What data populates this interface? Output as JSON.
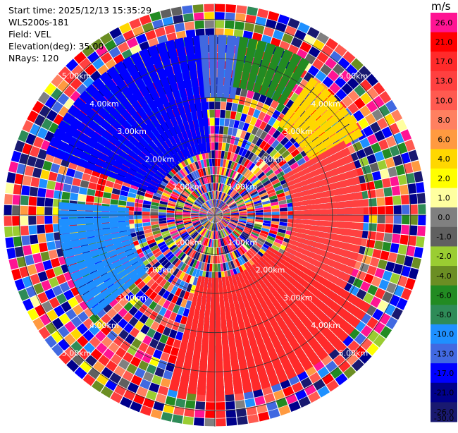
{
  "header": {
    "start_time": "Start time: 2025/12/13 15:35:29",
    "instrument": "WLS200s-181",
    "field": "Field: VEL",
    "elevation": "Elevation(deg): 35.00",
    "nrays": "NRays: 120"
  },
  "colorbar": {
    "unit": "m/s",
    "ticks": [
      "26.0",
      "21.0",
      "17.0",
      "13.0",
      "10.0",
      "8.0",
      "6.0",
      "4.0",
      "2.0",
      "1.0",
      "0.0",
      "-1.0",
      "-2.0",
      "-4.0",
      "-6.0",
      "-8.0",
      "-10.0",
      "-13.0",
      "-17.0",
      "-21.0",
      "-26.0",
      "-30.0"
    ],
    "colors": [
      "#ff1493",
      "#ff0000",
      "#ff2a2a",
      "#ff4040",
      "#ff5a50",
      "#ff8060",
      "#ff9a40",
      "#ffd700",
      "#ffff00",
      "#ffffa0",
      "#808080",
      "#606060",
      "#9acd32",
      "#6b8e23",
      "#228b22",
      "#2e8b57",
      "#1e90ff",
      "#4169e1",
      "#0000ff",
      "#00008b",
      "#191970"
    ]
  },
  "chart_data": {
    "type": "heatmap",
    "projection": "polar (PPI radial velocity)",
    "field": "VEL",
    "units": "m/s",
    "value_range": [
      -30,
      26
    ],
    "n_rays": 120,
    "range_ring_labels": [
      "1.00km",
      "2.00km",
      "3.00km",
      "4.00km",
      "5.00km"
    ],
    "range_rings_km": [
      1,
      2,
      3,
      4,
      5
    ],
    "label_angles_deg": [
      -45,
      45,
      135,
      225
    ],
    "max_range_km": 5.4,
    "sectors": [
      {
        "az_from": 290,
        "az_to": 355,
        "r_from_km": 1.6,
        "r_to_km": 4.6,
        "value": -17,
        "note": "negative velocity region (blue) NW"
      },
      {
        "az_from": 355,
        "az_to": 8,
        "r_from_km": 3.0,
        "r_to_km": 4.6,
        "value": -13
      },
      {
        "az_from": 8,
        "az_to": 30,
        "r_from_km": 3.3,
        "r_to_km": 4.6,
        "value": -6
      },
      {
        "az_from": 35,
        "az_to": 60,
        "r_from_km": 2.8,
        "r_to_km": 4.3,
        "value": 4
      },
      {
        "az_from": 60,
        "az_to": 120,
        "r_from_km": 2.0,
        "r_to_km": 3.8,
        "value": 13,
        "note": "positive velocity region (red) E"
      },
      {
        "az_from": 120,
        "az_to": 195,
        "r_from_km": 1.6,
        "r_to_km": 4.6,
        "value": 17,
        "note": "positive velocity region (red) S"
      },
      {
        "az_from": 230,
        "az_to": 275,
        "r_from_km": 2.2,
        "r_to_km": 4.0,
        "value": -10
      }
    ]
  }
}
